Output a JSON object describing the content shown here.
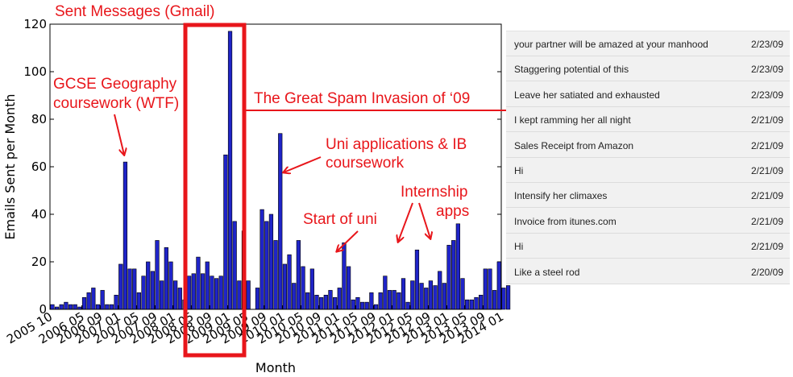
{
  "chart_data": {
    "type": "bar",
    "title": "Sent Messages (Gmail)",
    "xlabel": "Month",
    "ylabel": "Emails Sent per Month",
    "ylim": [
      0,
      120
    ],
    "yticks": [
      0,
      20,
      40,
      60,
      80,
      100,
      120
    ],
    "xlim": [
      "2005-10",
      "2014-01"
    ],
    "xtick_labels": [
      "2005 10",
      "2006 05",
      "2006 09",
      "2007 01",
      "2007 05",
      "2007 09",
      "2008 01",
      "2008 05",
      "2008 09",
      "2009 01",
      "2009 05",
      "2009 09",
      "2010 01",
      "2010 05",
      "2010 09",
      "2011 01",
      "2011 05",
      "2011 09",
      "2012 01",
      "2012 05",
      "2012 09",
      "2013 01",
      "2013 05",
      "2013 09",
      "2014 01"
    ],
    "bar_color": "#1f24c8",
    "series": [
      {
        "values": [
          2,
          1,
          2,
          3,
          2,
          2,
          1,
          5,
          7,
          9,
          2,
          8,
          2,
          2,
          6,
          19,
          62,
          17,
          17,
          7,
          14,
          20,
          16,
          29,
          12,
          26,
          20,
          12,
          9,
          4,
          14,
          15,
          22,
          15,
          20,
          14,
          13,
          14,
          65,
          117,
          37,
          12,
          33,
          12,
          0,
          9,
          42,
          37,
          40,
          29,
          74,
          19,
          23,
          11,
          29,
          18,
          7,
          17,
          6,
          5,
          6,
          8,
          5,
          9,
          28,
          18,
          4,
          5,
          3,
          3,
          7,
          2,
          7,
          14,
          8,
          8,
          7,
          13,
          3,
          12,
          25,
          11,
          9,
          12,
          10,
          16,
          11,
          27,
          29,
          36,
          13,
          4,
          4,
          5,
          6,
          17,
          17,
          8,
          20,
          9,
          10
        ]
      }
    ],
    "annotations": [
      {
        "text": "GCSE Geography",
        "text2": "coursework (WTF)"
      },
      {
        "text": "The Great Spam Invasion of ‘09"
      },
      {
        "text": "Uni applications & IB",
        "text2": "coursework"
      },
      {
        "text": "Start of uni"
      },
      {
        "text": "Internship",
        "text2": "apps"
      }
    ]
  },
  "email_list": [
    {
      "subject": "your partner will be amazed at your manhood",
      "date": "2/23/09"
    },
    {
      "subject": "Staggering potential of this",
      "date": "2/23/09"
    },
    {
      "subject": "Leave her satiated and exhausted",
      "date": "2/23/09"
    },
    {
      "subject": "I kept ramming her all night",
      "date": "2/21/09"
    },
    {
      "subject": "Sales Receipt from Amazon",
      "date": "2/21/09"
    },
    {
      "subject": "Hi",
      "date": "2/21/09"
    },
    {
      "subject": "Intensify her climaxes",
      "date": "2/21/09"
    },
    {
      "subject": "Invoice from itunes.com",
      "date": "2/21/09"
    },
    {
      "subject": "Hi",
      "date": "2/21/09"
    },
    {
      "subject": "Like a steel rod",
      "date": "2/20/09"
    }
  ],
  "colors": {
    "annotation": "#e8161b",
    "bars": "#1f24c8",
    "panel": "#f1f1f1"
  }
}
